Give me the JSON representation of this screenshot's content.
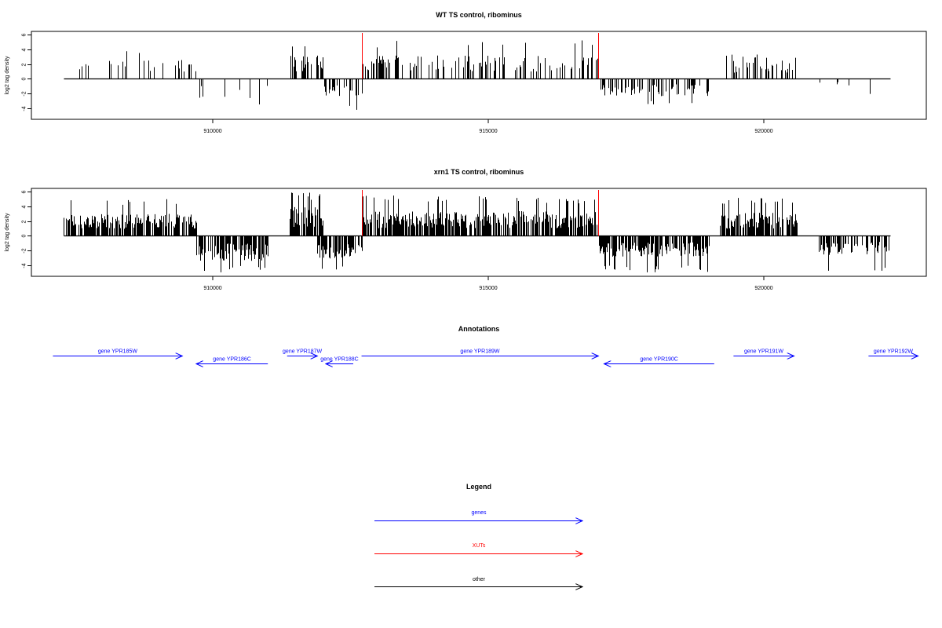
{
  "colors": {
    "genes": "#0000ff",
    "xuts": "#ff0000",
    "other": "#000000",
    "bars": "#000000"
  },
  "chart_data": [
    {
      "type": "bar",
      "title": "WT TS control, ribominus",
      "xlabel": "",
      "ylabel": "log2 tag density",
      "xlim": [
        907200,
        922400
      ],
      "ylim": [
        -5,
        6.5
      ],
      "x_ticks": [
        "910000",
        "915000",
        "920000"
      ],
      "y_ticks": [
        "6",
        "4",
        "2",
        "0",
        "-2",
        "-4"
      ],
      "markers_xuts": [
        912700,
        917000
      ],
      "segments": [
        {
          "start": 907300,
          "end": 909700,
          "sign": 1,
          "density": 0.13,
          "amp": 2.0,
          "peak": 4.0
        },
        {
          "start": 909700,
          "end": 911000,
          "sign": -1,
          "density": 0.12,
          "amp": 2.0,
          "peak": 4.0
        },
        {
          "start": 911400,
          "end": 912000,
          "sign": 1,
          "density": 0.35,
          "amp": 2.5,
          "peak": 5.2
        },
        {
          "start": 911900,
          "end": 912700,
          "sign": -1,
          "density": 0.3,
          "amp": 1.8,
          "peak": 4.2
        },
        {
          "start": 912700,
          "end": 917000,
          "sign": 1,
          "density": 0.3,
          "amp": 2.5,
          "peak": 5.3
        },
        {
          "start": 917000,
          "end": 919000,
          "sign": -1,
          "density": 0.35,
          "amp": 1.8,
          "peak": 3.6
        },
        {
          "start": 919200,
          "end": 920600,
          "sign": 1,
          "density": 0.3,
          "amp": 2.0,
          "peak": 3.5
        },
        {
          "start": 921000,
          "end": 922300,
          "sign": -1,
          "density": 0.04,
          "amp": 1.0,
          "peak": 2.5
        }
      ]
    },
    {
      "type": "bar",
      "title": "xrn1 TS control, ribominus",
      "xlabel": "",
      "ylabel": "log2 tag density",
      "xlim": [
        907200,
        922400
      ],
      "ylim": [
        -5,
        6.5
      ],
      "x_ticks": [
        "910000",
        "915000",
        "920000"
      ],
      "y_ticks": [
        "6",
        "4",
        "2",
        "0",
        "-2",
        "-4"
      ],
      "markers_xuts": [
        912700,
        917000
      ],
      "segments": [
        {
          "start": 907300,
          "end": 909700,
          "sign": 1,
          "density": 0.7,
          "amp": 2.3,
          "peak": 5.2
        },
        {
          "start": 909700,
          "end": 911000,
          "sign": -1,
          "density": 0.7,
          "amp": 2.6,
          "peak": 5.0
        },
        {
          "start": 911400,
          "end": 912000,
          "sign": 1,
          "density": 0.85,
          "amp": 3.0,
          "peak": 6.0
        },
        {
          "start": 911900,
          "end": 912700,
          "sign": -1,
          "density": 0.75,
          "amp": 2.4,
          "peak": 4.6
        },
        {
          "start": 912700,
          "end": 917000,
          "sign": 1,
          "density": 0.75,
          "amp": 2.6,
          "peak": 5.5
        },
        {
          "start": 917000,
          "end": 919000,
          "sign": -1,
          "density": 0.8,
          "amp": 2.2,
          "peak": 5.0
        },
        {
          "start": 919200,
          "end": 920600,
          "sign": 1,
          "density": 0.8,
          "amp": 2.4,
          "peak": 5.4
        },
        {
          "start": 921000,
          "end": 922300,
          "sign": -1,
          "density": 0.5,
          "amp": 2.0,
          "peak": 4.8
        }
      ]
    }
  ],
  "annotations": {
    "title": "Annotations",
    "genes": [
      {
        "label": "gene YPR185W",
        "start": 907100,
        "end": 909450,
        "strand": "+"
      },
      {
        "label": "gene YPR186C",
        "start": 909700,
        "end": 911000,
        "strand": "-"
      },
      {
        "label": "gene YPR187W",
        "start": 911350,
        "end": 911900,
        "strand": "+"
      },
      {
        "label": "gene YPR188C",
        "start": 912050,
        "end": 912550,
        "strand": "-"
      },
      {
        "label": "gene YPR189W",
        "start": 912700,
        "end": 917000,
        "strand": "+"
      },
      {
        "label": "gene YPR190C",
        "start": 917100,
        "end": 919100,
        "strand": "-"
      },
      {
        "label": "gene YPR191W",
        "start": 919450,
        "end": 920550,
        "strand": "+"
      },
      {
        "label": "gene YPR192W",
        "start": 921900,
        "end": 922800,
        "strand": "+"
      }
    ]
  },
  "legend": {
    "title": "Legend",
    "items": [
      {
        "label": "genes",
        "color": "#0000ff"
      },
      {
        "label": "XUTs",
        "color": "#ff0000"
      },
      {
        "label": "other",
        "color": "#000000"
      }
    ]
  }
}
